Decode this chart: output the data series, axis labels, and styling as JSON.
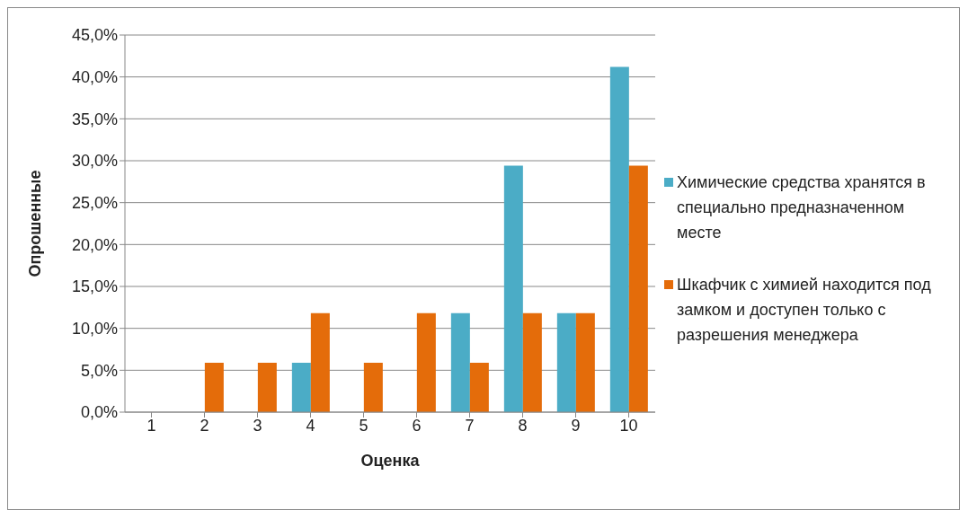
{
  "chart_data": {
    "type": "bar",
    "xlabel": "Оценка",
    "ylabel": "Опрошенные",
    "categories": [
      "1",
      "2",
      "3",
      "4",
      "5",
      "6",
      "7",
      "8",
      "9",
      "10"
    ],
    "series": [
      {
        "name": "Химические средства хранятся в специально предназначенном месте",
        "color": "#4bacc6",
        "values": [
          0,
          0,
          0,
          5.9,
          0,
          0,
          11.8,
          29.4,
          11.8,
          41.2
        ]
      },
      {
        "name": "Шкафчик с химией находится под замком и доступен только с разрешения менеджера",
        "color": "#e46c0a",
        "values": [
          0,
          5.9,
          5.9,
          11.8,
          5.9,
          11.8,
          5.9,
          11.8,
          11.8,
          29.4
        ]
      }
    ],
    "ylim": [
      0,
      45
    ],
    "yticks": [
      {
        "value": 0,
        "label": "0,0%"
      },
      {
        "value": 5,
        "label": "5,0%"
      },
      {
        "value": 10,
        "label": "10,0%"
      },
      {
        "value": 15,
        "label": "15,0%"
      },
      {
        "value": 20,
        "label": "20,0%"
      },
      {
        "value": 25,
        "label": "25,0%"
      },
      {
        "value": 30,
        "label": "30,0%"
      },
      {
        "value": 35,
        "label": "35,0%"
      },
      {
        "value": 40,
        "label": "40,0%"
      },
      {
        "value": 45,
        "label": "45,0%"
      }
    ],
    "grid": "y",
    "legend": "right"
  }
}
